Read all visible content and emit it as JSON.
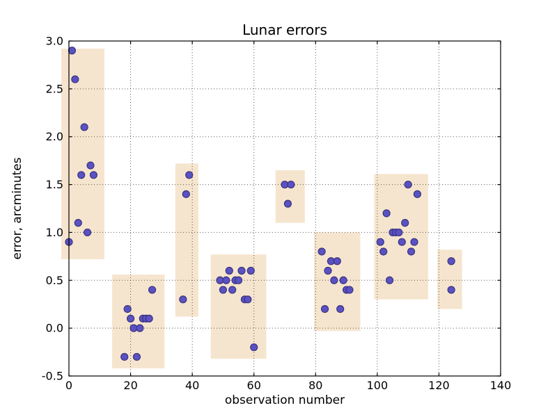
{
  "figure": {
    "background": "#ffffff"
  },
  "chart_data": {
    "type": "scatter",
    "title": "Lunar errors",
    "xlabel": "observation number",
    "ylabel": "error, arcminutes",
    "xlim": [
      0,
      140
    ],
    "ylim": [
      -0.5,
      3.0
    ],
    "xticks": [
      0,
      20,
      40,
      60,
      80,
      100,
      120,
      140
    ],
    "xtick_labels": [
      "0",
      "20",
      "40",
      "60",
      "80",
      "100",
      "120",
      "140"
    ],
    "yticks": [
      3.0,
      2.5,
      2.0,
      1.5,
      1.0,
      0.5,
      0.0,
      -0.5
    ],
    "ytick_labels": [
      "3.0",
      "2.5",
      "2.0",
      "1.5",
      "1.0",
      "0.5",
      "0.0",
      "-0.5"
    ],
    "grid": true,
    "grid_style": "dotted",
    "marker": {
      "shape": "circle",
      "fill": "#5a52c2",
      "edge": "#3a347f",
      "radius_px": 5
    },
    "band_fill": "#f6e5ce",
    "bands": [
      {
        "x0": -2.5,
        "x1": 11.5,
        "y0": 0.72,
        "y1": 2.92
      },
      {
        "x0": 14,
        "x1": 31,
        "y0": -0.42,
        "y1": 0.56
      },
      {
        "x0": 34.5,
        "x1": 42,
        "y0": 0.12,
        "y1": 1.72
      },
      {
        "x0": 46,
        "x1": 64,
        "y0": -0.32,
        "y1": 0.77
      },
      {
        "x0": 67,
        "x1": 76.5,
        "y0": 1.1,
        "y1": 1.65
      },
      {
        "x0": 79.5,
        "x1": 94.5,
        "y0": -0.03,
        "y1": 1.0
      },
      {
        "x0": 99,
        "x1": 116.5,
        "y0": 0.3,
        "y1": 1.61
      },
      {
        "x0": 119.5,
        "x1": 127.5,
        "y0": 0.2,
        "y1": 0.82
      }
    ],
    "points": [
      [
        1,
        2.9
      ],
      [
        2,
        2.6
      ],
      [
        5,
        2.1
      ],
      [
        7,
        1.7
      ],
      [
        4,
        1.6
      ],
      [
        8,
        1.6
      ],
      [
        3,
        1.1
      ],
      [
        6,
        1.0
      ],
      [
        0,
        0.9
      ],
      [
        27,
        0.4
      ],
      [
        19,
        0.2
      ],
      [
        20,
        0.1
      ],
      [
        24,
        0.1
      ],
      [
        25,
        0.1
      ],
      [
        26,
        0.1
      ],
      [
        21,
        0.0
      ],
      [
        23,
        0.0
      ],
      [
        18,
        -0.3
      ],
      [
        22,
        -0.3
      ],
      [
        39,
        1.6
      ],
      [
        38,
        1.4
      ],
      [
        37,
        0.3
      ],
      [
        52,
        0.6
      ],
      [
        56,
        0.6
      ],
      [
        59,
        0.6
      ],
      [
        49,
        0.5
      ],
      [
        51,
        0.5
      ],
      [
        54,
        0.5
      ],
      [
        55,
        0.5
      ],
      [
        50,
        0.4
      ],
      [
        53,
        0.4
      ],
      [
        57,
        0.3
      ],
      [
        58,
        0.3
      ],
      [
        60,
        -0.2
      ],
      [
        70,
        1.5
      ],
      [
        72,
        1.5
      ],
      [
        71,
        1.3
      ],
      [
        82,
        0.8
      ],
      [
        85,
        0.7
      ],
      [
        87,
        0.7
      ],
      [
        84,
        0.6
      ],
      [
        86,
        0.5
      ],
      [
        89,
        0.5
      ],
      [
        90,
        0.4
      ],
      [
        91,
        0.4
      ],
      [
        83,
        0.2
      ],
      [
        88,
        0.2
      ],
      [
        110,
        1.5
      ],
      [
        113,
        1.4
      ],
      [
        103,
        1.2
      ],
      [
        109,
        1.1
      ],
      [
        105,
        1.0
      ],
      [
        106,
        1.0
      ],
      [
        107,
        1.0
      ],
      [
        101,
        0.9
      ],
      [
        108,
        0.9
      ],
      [
        112,
        0.9
      ],
      [
        102,
        0.8
      ],
      [
        111,
        0.8
      ],
      [
        104,
        0.5
      ],
      [
        124,
        0.7
      ],
      [
        124,
        0.4
      ]
    ]
  }
}
